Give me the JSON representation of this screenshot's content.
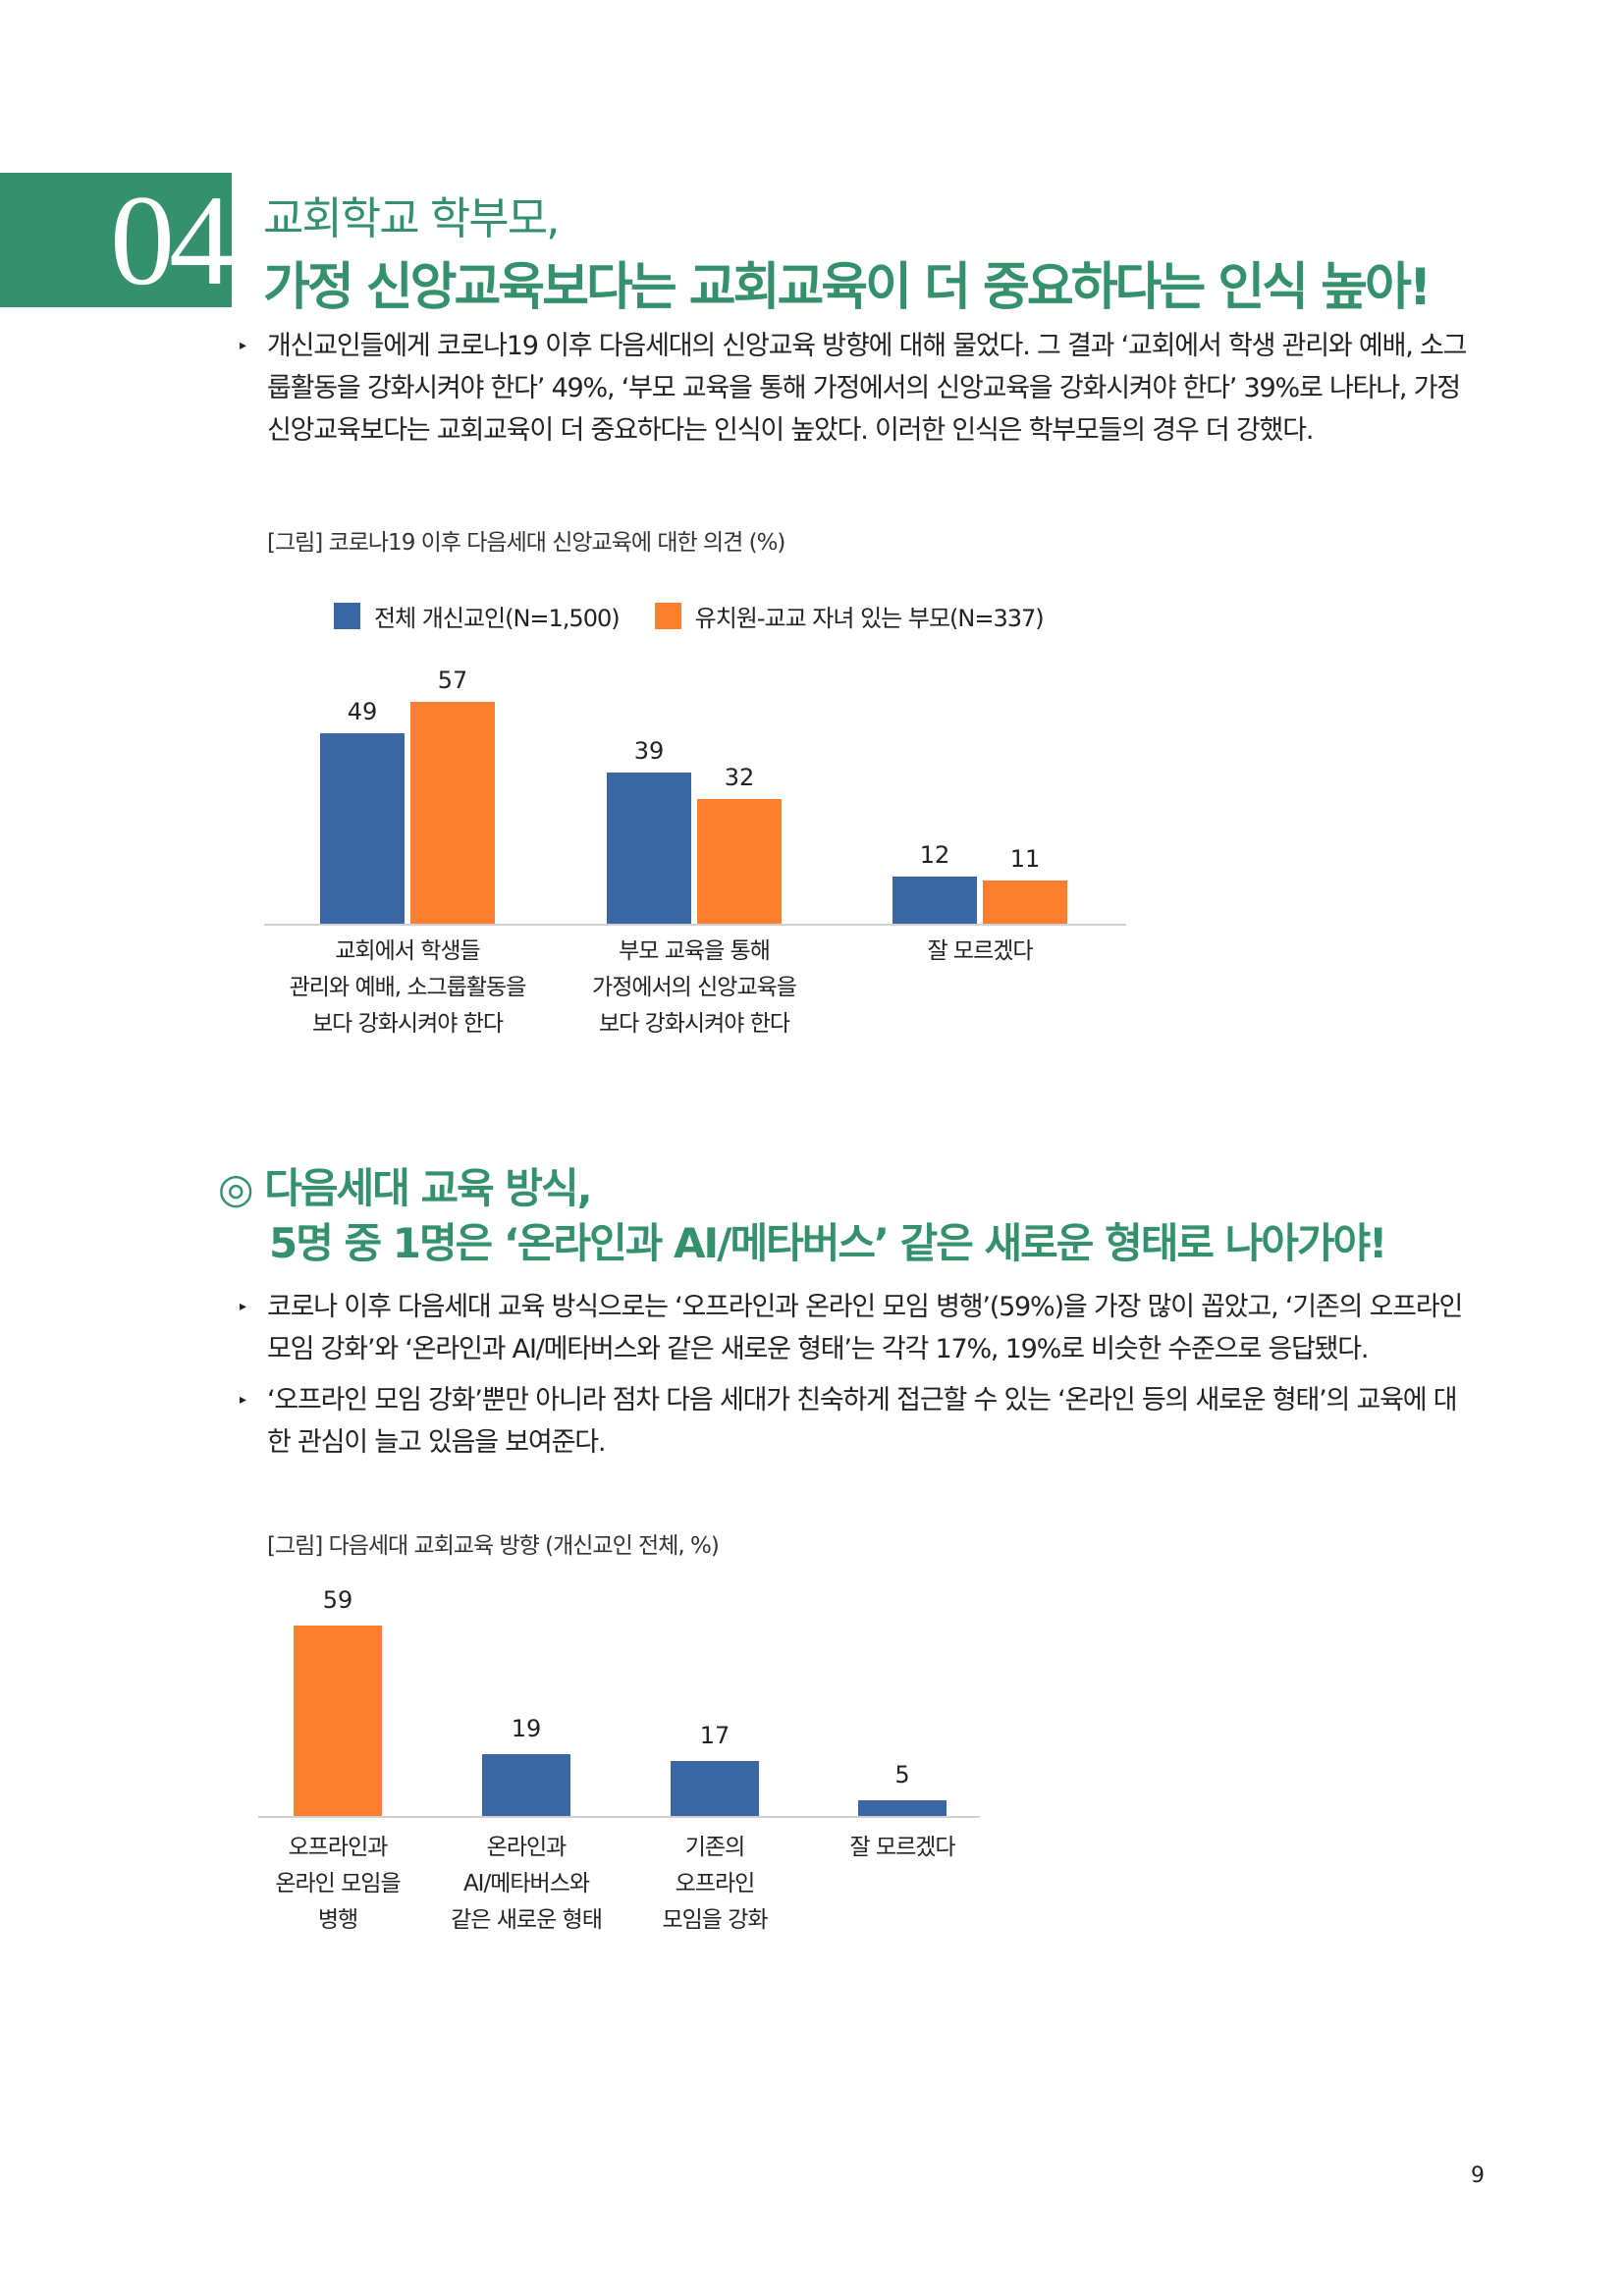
{
  "section1": {
    "number": "04",
    "title_line1": "교회학교 학부모,",
    "title_line2": "가정 신앙교육보다는 교회교육이 더 중요하다는 인식 높아!",
    "bullets": [
      "개신교인들에게 코로나19 이후 다음세대의 신앙교육 방향에 대해 물었다. 그 결과 ‘교회에서 학생 관리와 예배, 소그룹활동을 강화시켜야 한다’ 49%, ‘부모 교육을 통해 가정에서의 신앙교육을 강화시켜야 한다’ 39%로 나타나, 가정 신앙교육보다는 교회교육이 더 중요하다는 인식이 높았다. 이러한 인식은 학부모들의 경우 더 강했다."
    ],
    "figure_caption": "[그림] 코로나19 이후 다음세대 신앙교육에 대한 의견 (%)"
  },
  "section2": {
    "title_line1": "◎ 다음세대 교육 방식,",
    "title_line2": "5명 중 1명은 ‘온라인과 AI/메타버스’ 같은 새로운 형태로 나아가야!",
    "bullets": [
      "코로나 이후 다음세대 교육 방식으로는 ‘오프라인과 온라인 모임 병행’(59%)을 가장 많이 꼽았고, ‘기존의 오프라인 모임 강화’와 ‘온라인과 AI/메타버스와 같은 새로운 형태’는 각각 17%, 19%로 비슷한 수준으로 응답됐다.",
      "‘오프라인 모임 강화’뿐만 아니라 점차 다음 세대가 친숙하게 접근할 수 있는 ‘온라인 등의 새로운 형태’의 교육에 대한 관심이 늘고 있음을 보여준다."
    ],
    "figure_caption": "[그림] 다음세대 교회교육 방향 (개신교인 전체, %)"
  },
  "page_number": "9",
  "colors": {
    "green": "#35906e",
    "blue": "#3a66a3",
    "orange": "#fd7f2f"
  },
  "chart_data": [
    {
      "type": "bar",
      "title": "코로나19 이후 다음세대 신앙교육에 대한 의견 (%)",
      "categories": [
        [
          "교회에서 학생들",
          "관리와 예배, 소그룹활동을",
          "보다 강화시켜야 한다"
        ],
        [
          "부모 교육을 통해",
          "가정에서의 신앙교육을",
          "보다 강화시켜야 한다"
        ],
        [
          "잘 모르겠다"
        ]
      ],
      "series": [
        {
          "name": "전체 개신교인(N=1,500)",
          "color": "#3a66a3",
          "values": [
            49,
            39,
            12
          ]
        },
        {
          "name": "유치원-교교 자녀 있는 부모(N=337)",
          "color": "#fd7f2f",
          "values": [
            57,
            32,
            11
          ]
        }
      ],
      "legend": "top",
      "ylim": [
        0,
        60
      ]
    },
    {
      "type": "bar",
      "title": "다음세대 교회교육 방향 (개신교인 전체, %)",
      "categories": [
        [
          "오프라인과",
          "온라인 모임을",
          "병행"
        ],
        [
          "온라인과",
          "AI/메타버스와",
          "같은 새로운 형태"
        ],
        [
          "기존의",
          "오프라인",
          "모임을 강화"
        ],
        [
          "잘 모르겠다"
        ]
      ],
      "values": [
        59,
        19,
        17,
        5
      ],
      "colors": [
        "#fd7f2f",
        "#3a66a3",
        "#3a66a3",
        "#3a66a3"
      ],
      "ylim": [
        0,
        60
      ]
    }
  ]
}
